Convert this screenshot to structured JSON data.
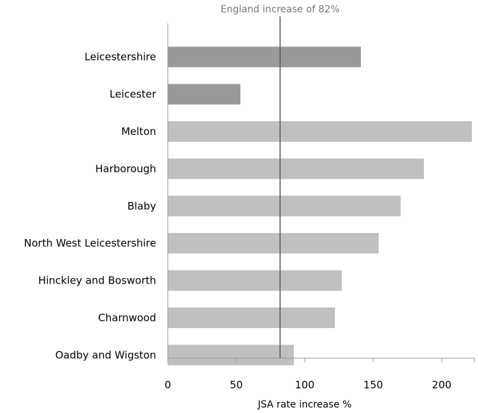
{
  "chart_data": {
    "type": "bar",
    "orientation": "horizontal",
    "categories": [
      "Leicestershire",
      "Leicester",
      "Melton",
      "Harborough",
      "Blaby",
      "North West Leicestershire",
      "Hinckley and Bosworth",
      "Charnwood",
      "Oadby and Wigston"
    ],
    "values": [
      141,
      53,
      222,
      187,
      170,
      154,
      127,
      122,
      92
    ],
    "bar_colors": [
      "#999999",
      "#999999",
      "#c0c0c0",
      "#c0c0c0",
      "#c0c0c0",
      "#c0c0c0",
      "#c0c0c0",
      "#c0c0c0",
      "#c0c0c0"
    ],
    "xlabel": "JSA rate increase %",
    "xlim": [
      0,
      224
    ],
    "xticks": [
      0,
      50,
      100,
      150,
      200
    ],
    "grid": false,
    "reference_line": {
      "value": 82,
      "label": "England increase of 82%",
      "color": "#555555"
    }
  }
}
